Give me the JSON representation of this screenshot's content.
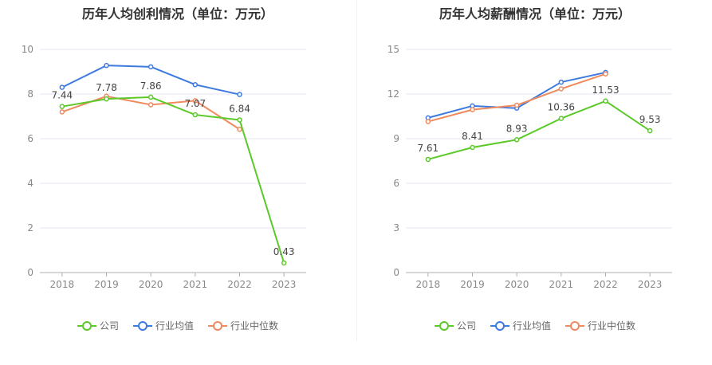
{
  "colors": {
    "company": "#5cc92b",
    "industry_avg": "#3d7ae0",
    "industry_median": "#f08a5d",
    "grid": "#e3e7f0",
    "axis": "#b0b0b0",
    "tick_text": "#888888"
  },
  "legend": {
    "company": "公司",
    "industry_avg": "行业均值",
    "industry_median": "行业中位数"
  },
  "chart_data": [
    {
      "type": "line",
      "title": "历年人均创利情况（单位：万元）",
      "categories": [
        "2018",
        "2019",
        "2020",
        "2021",
        "2022",
        "2023"
      ],
      "ylim": [
        0,
        10
      ],
      "yticks": [
        "0",
        "2",
        "4",
        "6",
        "8",
        "10"
      ],
      "grid": true,
      "legend_position": "bottom",
      "series": [
        {
          "name": "公司",
          "key": "company",
          "values": [
            7.44,
            7.78,
            7.86,
            7.07,
            6.84,
            0.43
          ],
          "labels": [
            "7.44",
            "7.78",
            "7.86",
            "7.07",
            "6.84",
            "0.43"
          ]
        },
        {
          "name": "行业均值",
          "key": "industry_avg",
          "values": [
            8.3,
            9.28,
            9.22,
            8.42,
            7.98,
            null
          ]
        },
        {
          "name": "行业中位数",
          "key": "industry_median",
          "values": [
            7.2,
            7.9,
            7.52,
            7.7,
            6.42,
            null
          ]
        }
      ]
    },
    {
      "type": "line",
      "title": "历年人均薪酬情况（单位：万元）",
      "categories": [
        "2018",
        "2019",
        "2020",
        "2021",
        "2022",
        "2023"
      ],
      "ylim": [
        0,
        15
      ],
      "yticks": [
        "0",
        "3",
        "6",
        "9",
        "12",
        "15"
      ],
      "grid": true,
      "legend_position": "bottom",
      "series": [
        {
          "name": "公司",
          "key": "company",
          "values": [
            7.61,
            8.41,
            8.93,
            10.36,
            11.53,
            9.53
          ],
          "labels": [
            "7.61",
            "8.41",
            "8.93",
            "10.36",
            "11.53",
            "9.53"
          ]
        },
        {
          "name": "行业均值",
          "key": "industry_avg",
          "values": [
            10.4,
            11.2,
            11.05,
            12.8,
            13.45,
            null
          ]
        },
        {
          "name": "行业中位数",
          "key": "industry_median",
          "values": [
            10.15,
            10.95,
            11.25,
            12.35,
            13.35,
            null
          ]
        }
      ]
    }
  ]
}
